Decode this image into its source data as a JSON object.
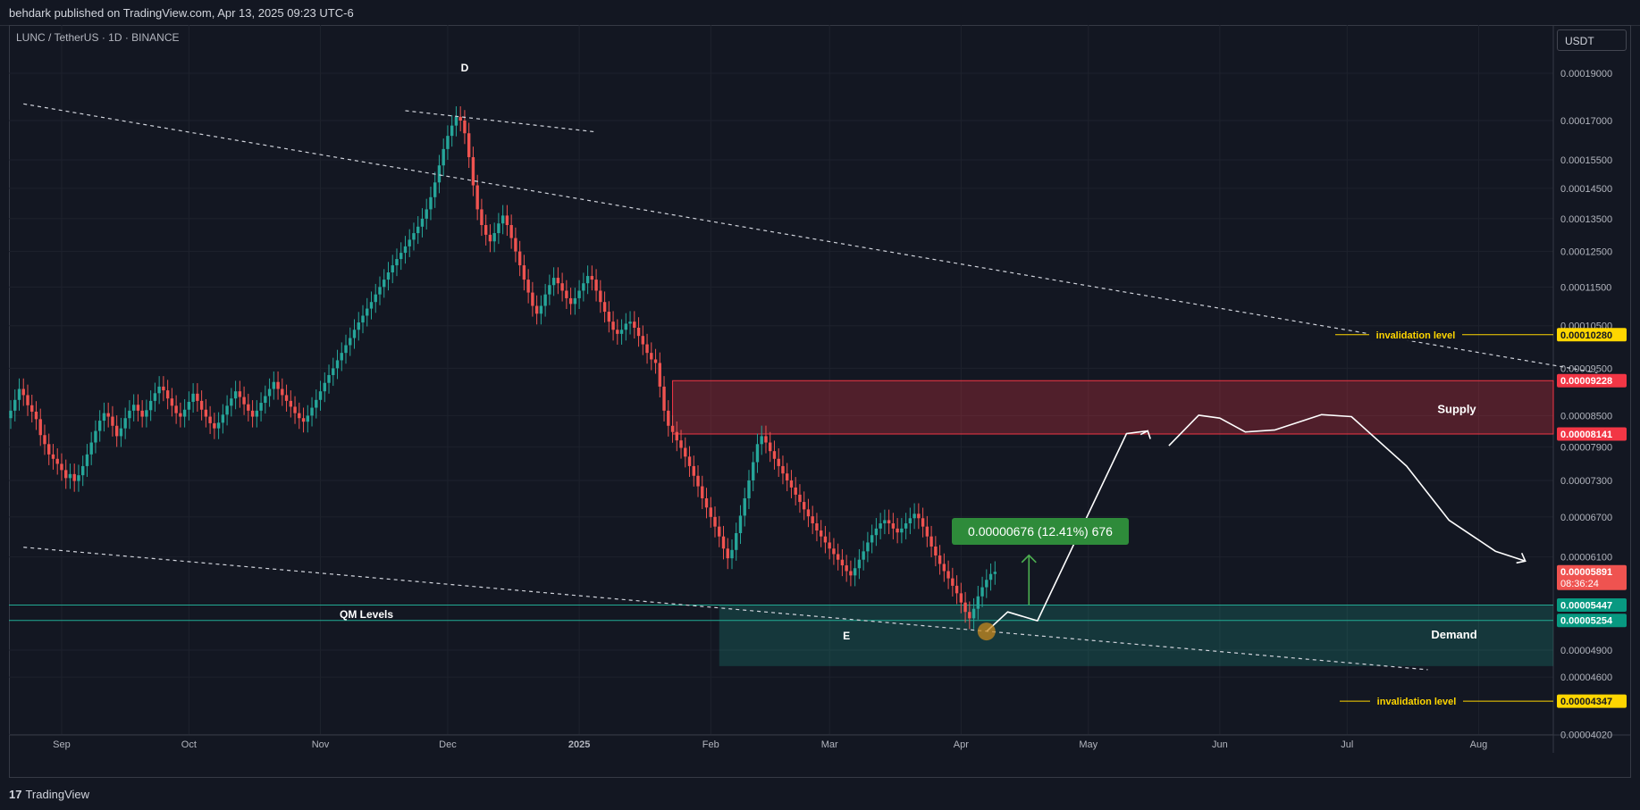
{
  "header": {
    "published": "behdark published on TradingView.com, Apr 13, 2025 09:23 UTC-6"
  },
  "symbol_line": "LUNC / TetherUS · 1D · BINANCE",
  "currency_button": "USDT",
  "footer": {
    "brand": "TradingView"
  },
  "colors": {
    "up": "#26a69a",
    "down": "#ef5350",
    "supply": "#f23645",
    "demand": "#22ab94",
    "invalidation": "#ffd600",
    "measure": "#2e8b3a",
    "grid": "#1e222d",
    "background": "#131722"
  },
  "chart_data": {
    "type": "candlestick",
    "title": "LUNC / TetherUS · 1D · BINANCE",
    "xlabel": "",
    "ylabel": "",
    "x_ticks": [
      "Sep",
      "Oct",
      "Nov",
      "Dec",
      "2025",
      "Feb",
      "Mar",
      "Apr",
      "May",
      "Jun",
      "Jul",
      "Aug"
    ],
    "y_ticks": [
      "0.00019000",
      "0.00017000",
      "0.00015500",
      "0.00014500",
      "0.00013500",
      "0.00012500",
      "0.00011500",
      "0.00010500",
      "0.00009500",
      "0.00008500",
      "0.00007900",
      "0.00007300",
      "0.00006700",
      "0.00006100",
      "0.00004900",
      "0.00004600",
      "0.00004020"
    ],
    "y_scale": "log",
    "grid": true,
    "price_labels": [
      {
        "value": "0.00010280",
        "kind": "invalidation"
      },
      {
        "value": "0.00009228",
        "kind": "supply"
      },
      {
        "value": "0.00008141",
        "kind": "supply"
      },
      {
        "value": "0.00005891",
        "kind": "last",
        "countdown": "08:36:24"
      },
      {
        "value": "0.00005447",
        "kind": "demand"
      },
      {
        "value": "0.00005254",
        "kind": "demand"
      },
      {
        "value": "0.00004347",
        "kind": "invalidation"
      }
    ],
    "zones": [
      {
        "name": "Supply",
        "low": 8.141e-05,
        "high": 9.228e-05
      },
      {
        "name": "Demand",
        "low": 4.72e-05,
        "high": 5.447e-05
      }
    ],
    "qm_levels": {
      "label": "QM Levels",
      "values": [
        5.447e-05,
        5.254e-05
      ]
    },
    "invalidation_levels": [
      {
        "label": "invalidation level",
        "value": 0.0001028
      },
      {
        "label": "invalidation level",
        "value": 4.347e-05
      }
    ],
    "point_labels": [
      {
        "label": "D",
        "date": "2024-12-05"
      },
      {
        "label": "E",
        "date": "2025-03-05"
      }
    ],
    "measure": {
      "text": "0.00000676 (12.41%) 676",
      "from": 5.447e-05,
      "to": 6.123e-05
    },
    "zone_labels": {
      "supply": "Supply",
      "demand": "Demand"
    },
    "trendlines": [
      {
        "from": [
          "2024-08-23",
          0.0001768
        ],
        "to": [
          "2025-08-29",
          9.4e-05
        ]
      },
      {
        "from": [
          "2024-08-23",
          6.24e-05
        ],
        "to": [
          "2025-07-20",
          4.68e-05
        ]
      },
      {
        "from": [
          "2024-11-21",
          0.000174
        ],
        "to": [
          "2025-01-05",
          0.0001655
        ]
      }
    ],
    "projection_path": [
      [
        "2025-04-07",
        5.12e-05
      ],
      [
        "2025-04-12",
        5.36e-05
      ],
      [
        "2025-04-19",
        5.25e-05
      ],
      [
        "2025-05-10",
        8.15e-05
      ],
      [
        "2025-05-15",
        8.2e-05
      ],
      [
        "PATH_BREAK",
        0
      ],
      [
        "2025-05-20",
        7.92e-05
      ],
      [
        "2025-05-27",
        8.51e-05
      ],
      [
        "2025-06-01",
        8.45e-05
      ],
      [
        "2025-06-07",
        8.18e-05
      ],
      [
        "2025-06-14",
        8.22e-05
      ],
      [
        "2025-06-25",
        8.52e-05
      ],
      [
        "2025-07-02",
        8.48e-05
      ],
      [
        "2025-07-15",
        7.55e-05
      ],
      [
        "2025-07-25",
        6.65e-05
      ],
      [
        "2025-08-05",
        6.18e-05
      ],
      [
        "2025-08-12",
        6.04e-05
      ]
    ],
    "ohlc_daily": {
      "start": "2024-08-20",
      "open": [
        8.45e-05,
        8.6e-05,
        8.82e-05,
        9.05e-05,
        8.92e-05,
        8.71e-05,
        8.58e-05,
        8.43e-05,
        8.12e-05,
        7.95e-05,
        7.76e-05,
        7.68e-05,
        7.59e-05,
        7.48e-05,
        7.34e-05,
        7.41e-05,
        7.29e-05,
        7.39e-05,
        7.55e-05,
        7.76e-05,
        7.98e-05,
        8.2e-05,
        8.4e-05,
        8.55e-05,
        8.48e-05,
        8.3e-05,
        8.1e-05,
        8.25e-05,
        8.45e-05,
        8.6e-05,
        8.72e-05,
        8.6e-05,
        8.48e-05,
        8.61e-05,
        8.8e-05,
        8.96e-05,
        9.1e-05,
        9.02e-05,
        8.85e-05,
        8.7e-05,
        8.55e-05,
        8.48e-05,
        8.62e-05,
        8.78e-05,
        8.95e-05,
        8.8e-05,
        8.62e-05,
        8.48e-05,
        8.35e-05,
        8.25e-05,
        8.36e-05,
        8.52e-05,
        8.7e-05,
        8.85e-05,
        9e-05,
        8.88e-05,
        8.73e-05,
        8.6e-05,
        8.48e-05,
        8.6e-05,
        8.76e-05,
        8.9e-05,
        9.05e-05,
        9.2e-05,
        9.05e-05,
        8.92e-05,
        8.8e-05,
        8.68e-05,
        8.55e-05,
        8.45e-05,
        8.38e-05,
        8.5e-05,
        8.66e-05,
        8.82e-05,
        9e-05,
        9.18e-05,
        9.35e-05,
        9.5e-05,
        9.68e-05,
        9.85e-05,
        0.0001003,
        0.000102,
        0.000104,
        0.0001058,
        0.0001075,
        0.0001093,
        0.000111,
        0.000113,
        0.000115,
        0.000117,
        0.000119,
        0.000121,
        0.0001228,
        0.0001246,
        0.0001265,
        0.0001285,
        0.0001305,
        0.0001325,
        0.000135,
        0.000138,
        0.000142,
        0.000147,
        0.000153,
        0.000159,
        0.000164,
        0.000168,
        0.0001715,
        0.00017,
        0.000165,
        0.000156,
        0.000146,
        0.000138,
        0.000133,
        0.00013,
        0.000128,
        0.0001305,
        0.0001335,
        0.000136,
        0.000133,
        0.000129,
        0.000125,
        0.000121,
        0.000117,
        0.0001135,
        0.00011,
        0.000108,
        0.00011,
        0.000113,
        0.0001155,
        0.0001175,
        0.000116,
        0.000114,
        0.000112,
        0.0001105,
        0.000112,
        0.000114,
        0.000116,
        0.000118,
        0.000117,
        0.000114,
        0.000111,
        0.0001085,
        0.000106,
        0.000104,
        0.000103,
        0.000104,
        0.0001055,
        0.000106,
        0.0001045,
        0.0001025,
        0.0001005,
        9.85e-05,
        9.7e-05,
        9.62e-05,
        9.1e-05,
        8.6e-05,
        8.3e-05,
        8.18e-05,
        8.02e-05,
        7.88e-05,
        7.72e-05,
        7.55e-05,
        7.38e-05,
        7.2e-05,
        7e-05,
        6.85e-05,
        6.7e-05,
        6.55e-05,
        6.4e-05,
        6.22e-05,
        6.08e-05,
        6.2e-05,
        6.45e-05,
        6.72e-05,
        7e-05,
        7.3e-05,
        7.62e-05,
        7.95e-05,
        8.1e-05,
        7.98e-05,
        7.82e-05,
        7.68e-05,
        7.55e-05,
        7.42e-05,
        7.3e-05,
        7.18e-05,
        7.06e-05,
        6.94e-05,
        6.82e-05,
        6.71e-05,
        6.6e-05,
        6.49e-05,
        6.4e-05,
        6.31e-05,
        6.22e-05,
        6.14e-05,
        6.06e-05,
        5.98e-05,
        5.9e-05,
        5.84e-05,
        5.94e-05,
        6.06e-05,
        6.18e-05,
        6.31e-05,
        6.42e-05,
        6.52e-05,
        6.6e-05,
        6.65e-05,
        6.6e-05,
        6.52e-05,
        6.46e-05,
        6.52e-05,
        6.6e-05,
        6.68e-05,
        6.75e-05,
        6.68e-05,
        6.55e-05,
        6.4e-05,
        6.25e-05,
        6.12e-05,
        6e-05,
        5.9e-05,
        5.8e-05,
        5.7e-05,
        5.6e-05,
        5.48e-05,
        5.36e-05,
        5.28e-05,
        5.4e-05,
        5.56e-05,
        5.68e-05,
        5.78e-05,
        5.86e-05
      ],
      "close": [
        8.6e-05,
        8.82e-05,
        9.05e-05,
        8.92e-05,
        8.71e-05,
        8.58e-05,
        8.43e-05,
        8.12e-05,
        7.95e-05,
        7.76e-05,
        7.68e-05,
        7.59e-05,
        7.48e-05,
        7.34e-05,
        7.41e-05,
        7.29e-05,
        7.39e-05,
        7.55e-05,
        7.76e-05,
        7.98e-05,
        8.2e-05,
        8.4e-05,
        8.55e-05,
        8.48e-05,
        8.3e-05,
        8.1e-05,
        8.25e-05,
        8.45e-05,
        8.6e-05,
        8.72e-05,
        8.6e-05,
        8.48e-05,
        8.61e-05,
        8.8e-05,
        8.96e-05,
        9.1e-05,
        9.02e-05,
        8.85e-05,
        8.7e-05,
        8.55e-05,
        8.48e-05,
        8.62e-05,
        8.78e-05,
        8.95e-05,
        8.8e-05,
        8.62e-05,
        8.48e-05,
        8.35e-05,
        8.25e-05,
        8.36e-05,
        8.52e-05,
        8.7e-05,
        8.85e-05,
        9e-05,
        8.88e-05,
        8.73e-05,
        8.6e-05,
        8.48e-05,
        8.6e-05,
        8.76e-05,
        8.9e-05,
        9.05e-05,
        9.2e-05,
        9.05e-05,
        8.92e-05,
        8.8e-05,
        8.68e-05,
        8.55e-05,
        8.45e-05,
        8.38e-05,
        8.5e-05,
        8.66e-05,
        8.82e-05,
        9e-05,
        9.18e-05,
        9.35e-05,
        9.5e-05,
        9.68e-05,
        9.85e-05,
        0.0001003,
        0.000102,
        0.000104,
        0.0001058,
        0.0001075,
        0.0001093,
        0.000111,
        0.000113,
        0.000115,
        0.000117,
        0.000119,
        0.000121,
        0.0001228,
        0.0001246,
        0.0001265,
        0.0001285,
        0.0001305,
        0.0001325,
        0.000135,
        0.000138,
        0.000142,
        0.000147,
        0.000153,
        0.000159,
        0.000164,
        0.000168,
        0.0001715,
        0.00017,
        0.000165,
        0.000156,
        0.000146,
        0.000138,
        0.000133,
        0.00013,
        0.000128,
        0.0001305,
        0.0001335,
        0.000136,
        0.000133,
        0.000129,
        0.000125,
        0.000121,
        0.000117,
        0.0001135,
        0.00011,
        0.000108,
        0.00011,
        0.000113,
        0.0001155,
        0.0001175,
        0.000116,
        0.000114,
        0.000112,
        0.0001105,
        0.000112,
        0.000114,
        0.000116,
        0.000118,
        0.000117,
        0.000114,
        0.000111,
        0.0001085,
        0.000106,
        0.000104,
        0.000103,
        0.000104,
        0.0001055,
        0.000106,
        0.0001045,
        0.0001025,
        0.0001005,
        9.85e-05,
        9.7e-05,
        9.62e-05,
        9.1e-05,
        8.6e-05,
        8.3e-05,
        8.18e-05,
        8.02e-05,
        7.88e-05,
        7.72e-05,
        7.55e-05,
        7.38e-05,
        7.2e-05,
        7e-05,
        6.85e-05,
        6.7e-05,
        6.55e-05,
        6.4e-05,
        6.22e-05,
        6.08e-05,
        6.2e-05,
        6.45e-05,
        6.72e-05,
        7e-05,
        7.3e-05,
        7.62e-05,
        7.95e-05,
        8.1e-05,
        7.98e-05,
        7.82e-05,
        7.68e-05,
        7.55e-05,
        7.42e-05,
        7.3e-05,
        7.18e-05,
        7.06e-05,
        6.94e-05,
        6.82e-05,
        6.71e-05,
        6.6e-05,
        6.49e-05,
        6.4e-05,
        6.31e-05,
        6.22e-05,
        6.14e-05,
        6.06e-05,
        5.98e-05,
        5.9e-05,
        5.84e-05,
        5.94e-05,
        6.06e-05,
        6.18e-05,
        6.31e-05,
        6.42e-05,
        6.52e-05,
        6.6e-05,
        6.65e-05,
        6.6e-05,
        6.52e-05,
        6.46e-05,
        6.52e-05,
        6.6e-05,
        6.68e-05,
        6.75e-05,
        6.68e-05,
        6.55e-05,
        6.4e-05,
        6.25e-05,
        6.12e-05,
        6e-05,
        5.9e-05,
        5.8e-05,
        5.7e-05,
        5.6e-05,
        5.48e-05,
        5.36e-05,
        5.28e-05,
        5.4e-05,
        5.56e-05,
        5.68e-05,
        5.78e-05,
        5.86e-05,
        5.89e-05
      ]
    }
  }
}
